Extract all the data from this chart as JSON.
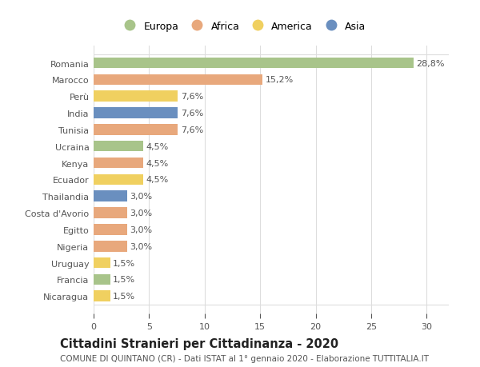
{
  "categories": [
    "Romania",
    "Marocco",
    "Perù",
    "India",
    "Tunisia",
    "Ucraina",
    "Kenya",
    "Ecuador",
    "Thailandia",
    "Costa d'Avorio",
    "Egitto",
    "Nigeria",
    "Uruguay",
    "Francia",
    "Nicaragua"
  ],
  "values": [
    28.8,
    15.2,
    7.6,
    7.6,
    7.6,
    4.5,
    4.5,
    4.5,
    3.0,
    3.0,
    3.0,
    3.0,
    1.5,
    1.5,
    1.5
  ],
  "labels": [
    "28,8%",
    "15,2%",
    "7,6%",
    "7,6%",
    "7,6%",
    "4,5%",
    "4,5%",
    "4,5%",
    "3,0%",
    "3,0%",
    "3,0%",
    "3,0%",
    "1,5%",
    "1,5%",
    "1,5%"
  ],
  "continents": [
    "Europa",
    "Africa",
    "America",
    "Asia",
    "Africa",
    "Europa",
    "Africa",
    "America",
    "Asia",
    "Africa",
    "Africa",
    "Africa",
    "America",
    "Europa",
    "America"
  ],
  "continent_colors": {
    "Europa": "#a8c48a",
    "Africa": "#e8a87c",
    "America": "#f0d060",
    "Asia": "#6a8fbf"
  },
  "legend_order": [
    "Europa",
    "Africa",
    "America",
    "Asia"
  ],
  "title": "Cittadini Stranieri per Cittadinanza - 2020",
  "subtitle": "COMUNE DI QUINTANO (CR) - Dati ISTAT al 1° gennaio 2020 - Elaborazione TUTTITALIA.IT",
  "xlim": [
    0,
    32
  ],
  "xticks": [
    0,
    5,
    10,
    15,
    20,
    25,
    30
  ],
  "bg_color": "#ffffff",
  "grid_color": "#dddddd",
  "bar_height": 0.65,
  "label_fontsize": 8,
  "tick_label_fontsize": 8,
  "title_fontsize": 10.5,
  "subtitle_fontsize": 7.5
}
